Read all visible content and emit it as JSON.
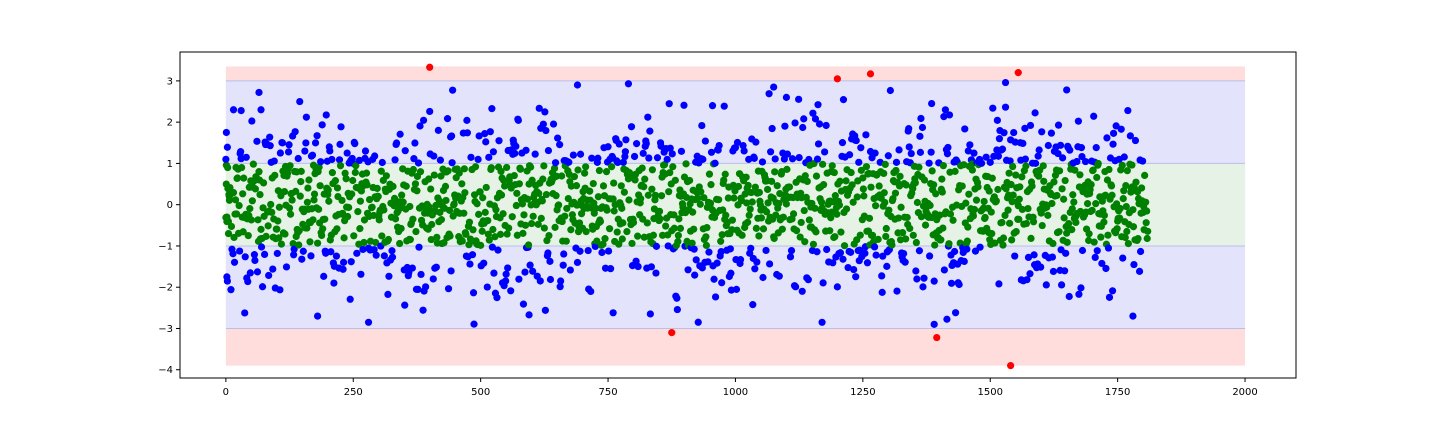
{
  "chart_data": {
    "type": "scatter",
    "title": "",
    "xlabel": "",
    "ylabel": "",
    "xlim": [
      -90,
      2100
    ],
    "ylim": [
      -4.2,
      3.7
    ],
    "x_ticks": [
      0,
      250,
      500,
      750,
      1000,
      1250,
      1500,
      1750,
      2000
    ],
    "y_ticks": [
      -4,
      -3,
      -2,
      -1,
      0,
      1,
      2,
      3
    ],
    "x_tick_labels": [
      "0",
      "250",
      "500",
      "750",
      "1000",
      "1250",
      "1500",
      "1750",
      "2000"
    ],
    "y_tick_labels": [
      "−4",
      "−3",
      "−2",
      "−1",
      "0",
      "1",
      "2",
      "3"
    ],
    "grid": false,
    "legend": "none",
    "bands": [
      {
        "y_range": [
          -3.9,
          3.35
        ],
        "x_range": [
          0,
          2000
        ],
        "color": "#ffdddd"
      },
      {
        "y_range": [
          -3.0,
          3.0
        ],
        "x_range": [
          0,
          2000
        ],
        "color": "#e3e3fb"
      },
      {
        "y_range": [
          -1.0,
          1.0
        ],
        "x_range": [
          0,
          2000
        ],
        "color": "#e6f2e6"
      }
    ],
    "band_edge_color": "#b8c0e8",
    "sample": {
      "x_range": [
        0,
        1810
      ],
      "count": 1810,
      "rule": "|y| <= 1 green, 1 < |y| <= 3 blue, |y| > 3 red"
    },
    "series": [
      {
        "color": "#008000",
        "points": [
          [
            0.8,
            0.5
          ],
          [
            2.1,
            -0.3
          ],
          [
            3.5,
            0.9
          ],
          [
            5.2,
            -0.7
          ],
          [
            6.8,
            0.2
          ]
        ]
      },
      {
        "color": "#0000ff",
        "points": [
          [
            0,
            1.1
          ],
          [
            1,
            1.75
          ],
          [
            2,
            -1.75
          ],
          [
            3,
            -1.85
          ],
          [
            65,
            2.72
          ],
          [
            69,
            2.3
          ],
          [
            690,
            2.9
          ],
          [
            790,
            2.93
          ],
          [
            1075,
            2.85
          ],
          [
            1530,
            2.96
          ],
          [
            955,
            2.4
          ],
          [
            1650,
            2.78
          ],
          [
            1100,
            2.6
          ],
          [
            15,
            2.3
          ],
          [
            30,
            2.28
          ],
          [
            280,
            -2.85
          ],
          [
            595,
            -2.67
          ],
          [
            760,
            -2.62
          ],
          [
            1170,
            -2.85
          ],
          [
            1390,
            -2.9
          ],
          [
            1385,
            2.45
          ],
          [
            1780,
            -2.7
          ],
          [
            180,
            -2.7
          ]
        ]
      },
      {
        "color": "#ff0000",
        "points": [
          [
            400,
            3.33
          ],
          [
            875,
            -3.1
          ],
          [
            1200,
            3.05
          ],
          [
            1265,
            3.17
          ],
          [
            1395,
            -3.22
          ],
          [
            1540,
            -3.9
          ],
          [
            1555,
            3.2
          ]
        ]
      }
    ]
  }
}
